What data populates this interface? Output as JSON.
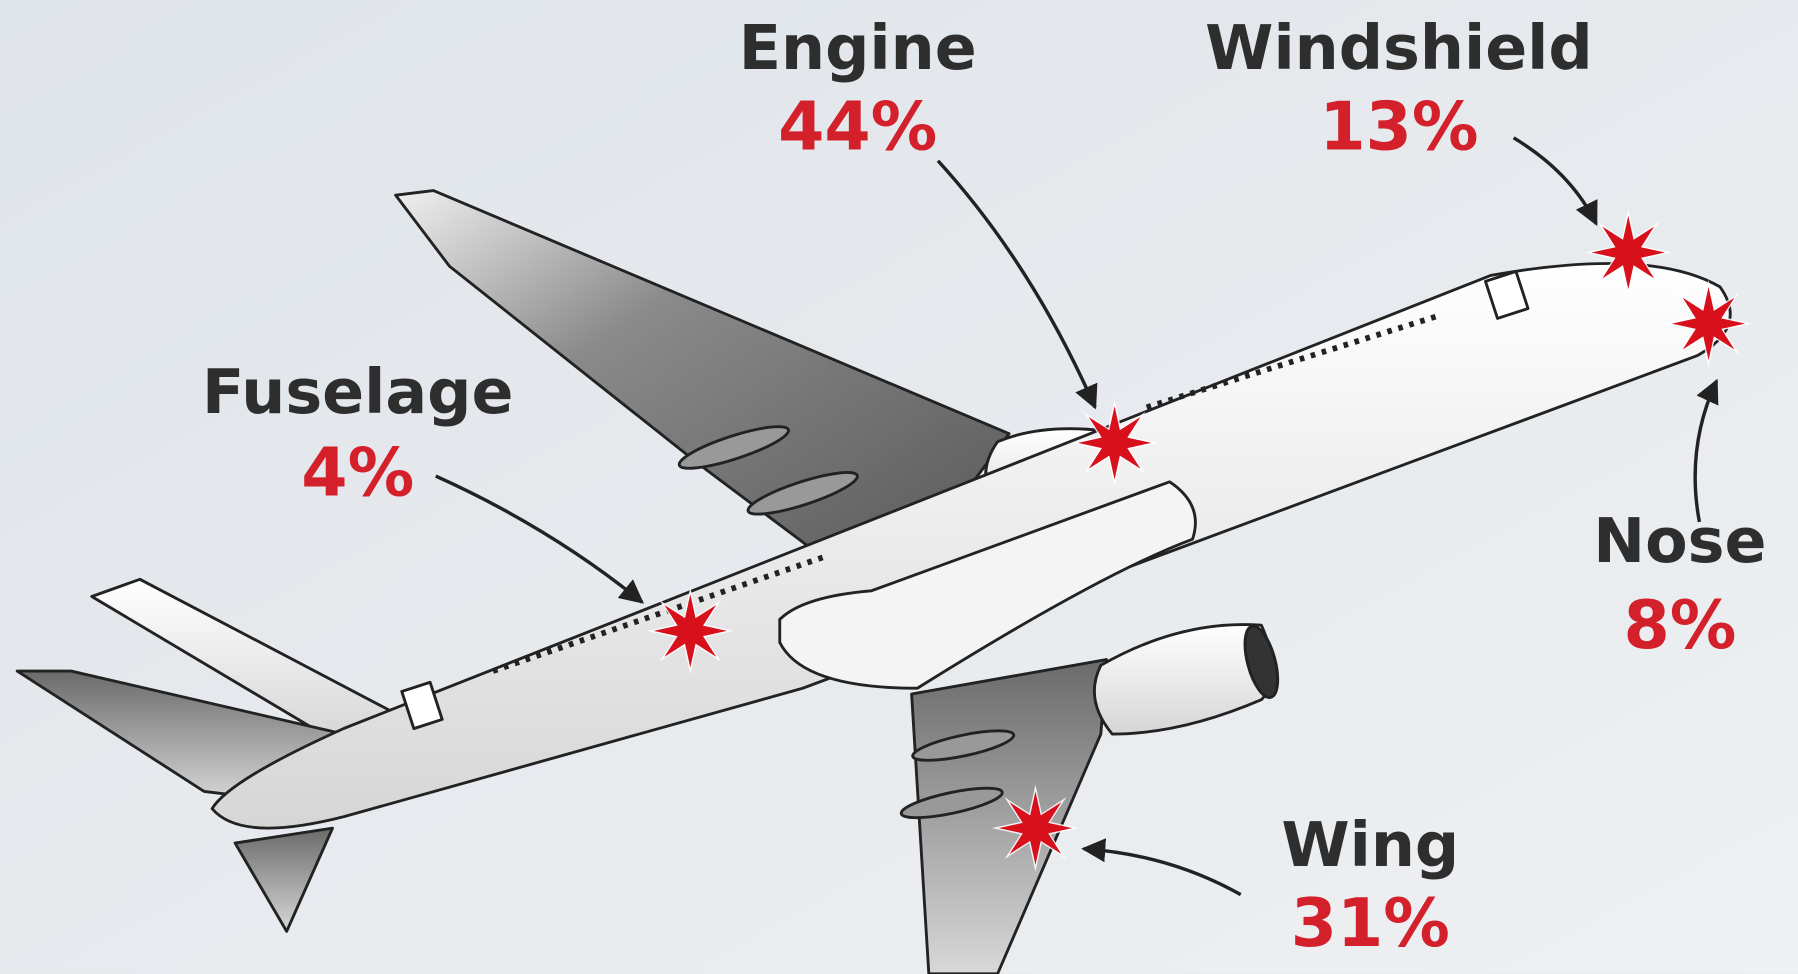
{
  "labels": [
    {
      "name": "Engine",
      "value": "44%"
    },
    {
      "name": "Windshield",
      "value": "13%"
    },
    {
      "name": "Fuselage",
      "value": "4%"
    },
    {
      "name": "Nose",
      "value": "8%"
    },
    {
      "name": "Wing",
      "value": "31%"
    }
  ]
}
